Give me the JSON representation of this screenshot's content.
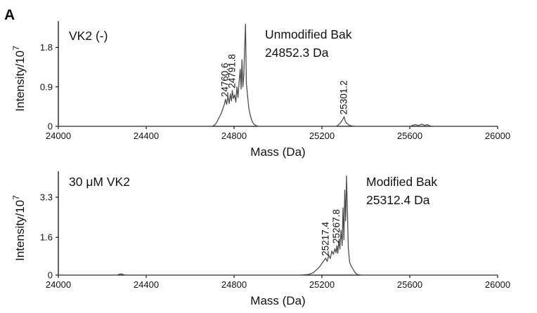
{
  "panel_label": "A",
  "chart_data": [
    {
      "type": "line",
      "condition": "VK2 (-)",
      "annotation_lines": [
        "Unmodified Bak",
        "24852.3 Da"
      ],
      "xlabel": "Mass (Da)",
      "ylabel_base": "Intensity/10",
      "ylabel_exp": "7",
      "xlim": [
        24000,
        26000
      ],
      "ylim": [
        0,
        2.4
      ],
      "x_ticks": [
        24000,
        24400,
        24800,
        25200,
        25600,
        26000
      ],
      "y_ticks": [
        0,
        0.9,
        1.8
      ],
      "x_tick_labels": [
        "24000",
        "24400",
        "24800",
        "25200",
        "25600",
        "26000"
      ],
      "y_tick_labels": [
        "0",
        "0.9",
        "1.8"
      ],
      "peak_labels": [
        {
          "x": 24760.6,
          "y": 0.62,
          "label": "24760.6"
        },
        {
          "x": 24791.8,
          "y": 0.82,
          "label": "24791.8"
        },
        {
          "x": 25301.2,
          "y": 0.22,
          "label": "25301.2"
        }
      ],
      "series": [
        {
          "x": [
            24000,
            24700,
            24712,
            24722,
            24732,
            24742,
            24750,
            24757,
            24761,
            24766,
            24772,
            24778,
            24783,
            24788,
            24792,
            24797,
            24803,
            24808,
            24813,
            24818,
            24823,
            24828,
            24832,
            24836,
            24840,
            24844,
            24848,
            24852,
            24856,
            24861,
            24867,
            24874,
            24882,
            24890,
            24900,
            24910,
            25000,
            25265,
            25275,
            25283,
            25290,
            25296,
            25301,
            25306,
            25311,
            25318,
            25326,
            25336,
            25346,
            25600,
            25612,
            25625,
            25640,
            25655,
            25668,
            25680,
            25692,
            25705,
            26000
          ],
          "values": [
            0,
            0,
            0.03,
            0.1,
            0.2,
            0.3,
            0.42,
            0.52,
            0.62,
            0.5,
            0.68,
            0.52,
            0.74,
            0.58,
            0.82,
            0.63,
            0.72,
            0.55,
            0.9,
            0.66,
            1.02,
            1.3,
            0.85,
            1.52,
            0.9,
            1.15,
            1.75,
            2.33,
            0.98,
            0.72,
            0.42,
            0.25,
            0.12,
            0.05,
            0.02,
            0,
            0,
            0,
            0.03,
            0.07,
            0.12,
            0.17,
            0.22,
            0.12,
            0.08,
            0.05,
            0.02,
            0.01,
            0,
            0,
            0.02,
            0.04,
            0.02,
            0.05,
            0.02,
            0.04,
            0.01,
            0,
            0
          ]
        }
      ]
    },
    {
      "type": "line",
      "condition": "30 μM VK2",
      "annotation_lines": [
        "Modified Bak",
        "25312.4 Da"
      ],
      "xlabel": "Mass (Da)",
      "ylabel_base": "Intensity/10",
      "ylabel_exp": "7",
      "xlim": [
        24000,
        26000
      ],
      "ylim": [
        0,
        4.4
      ],
      "x_ticks": [
        24000,
        24400,
        24800,
        25200,
        25600,
        26000
      ],
      "y_ticks": [
        0,
        1.6,
        3.3
      ],
      "x_tick_labels": [
        "24000",
        "24400",
        "24800",
        "25200",
        "25600",
        "26000"
      ],
      "y_tick_labels": [
        "0",
        "1.6",
        "3.3"
      ],
      "peak_labels": [
        {
          "x": 25217.4,
          "y": 0.72,
          "label": "25217.4"
        },
        {
          "x": 25267.8,
          "y": 1.25,
          "label": "25267.8"
        }
      ],
      "series": [
        {
          "x": [
            24000,
            24268,
            24276,
            24286,
            24296,
            24306,
            25100,
            25140,
            25160,
            25175,
            25190,
            25200,
            25210,
            25217,
            25224,
            25231,
            25238,
            25245,
            25252,
            25259,
            25264,
            25268,
            25272,
            25277,
            25282,
            25287,
            25292,
            25296,
            25300,
            25304,
            25308,
            25312,
            25316,
            25320,
            25326,
            25333,
            25340,
            25350,
            25360,
            25380,
            26000
          ],
          "values": [
            0,
            0,
            0.03,
            0.05,
            0.02,
            0,
            0,
            0.03,
            0.1,
            0.22,
            0.36,
            0.5,
            0.62,
            0.72,
            0.58,
            0.85,
            0.7,
            1.02,
            0.88,
            1.12,
            0.95,
            1.25,
            0.92,
            1.45,
            1.1,
            1.9,
            1.25,
            2.85,
            1.5,
            3.6,
            2.3,
            4.2,
            2.7,
            1.15,
            0.55,
            0.38,
            0.28,
            0.12,
            0.03,
            0,
            0
          ]
        }
      ]
    }
  ]
}
